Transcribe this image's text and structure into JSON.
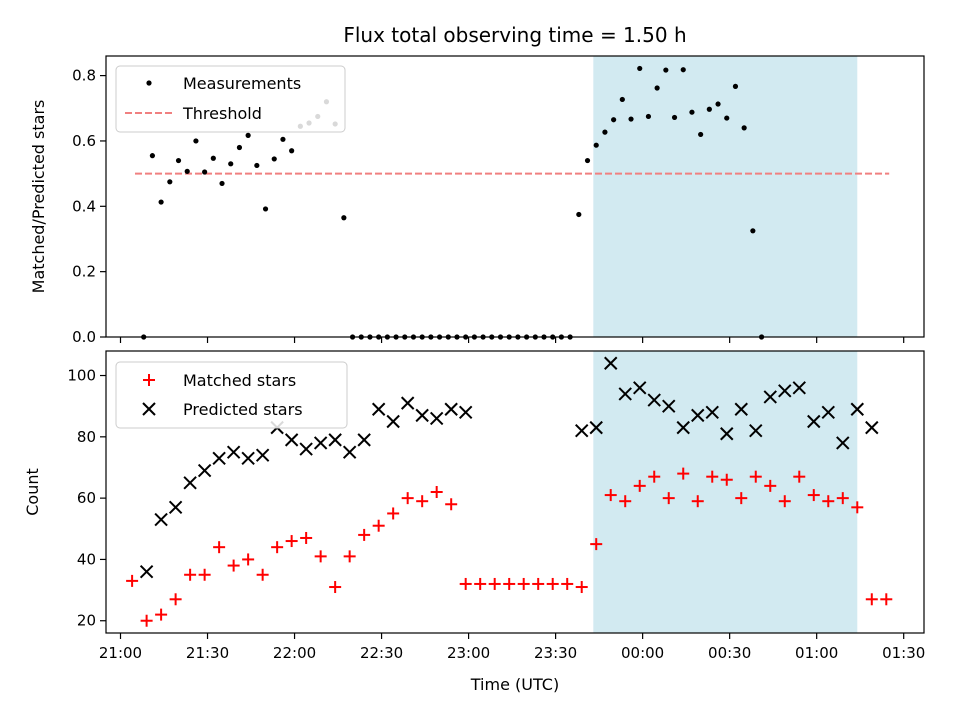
{
  "figure_title": "Flux total observing time = 1.50 h",
  "colors": {
    "measurement": "#000000",
    "threshold": "#f08080",
    "matched": "#ff0000",
    "predicted": "#000000",
    "shade": "#add8e6"
  },
  "chart_data": [
    {
      "type": "scatter",
      "title": "Flux total observing time = 1.50 h",
      "xlabel": "",
      "ylabel": "Matched/Predicted stars",
      "ylim": [
        0,
        0.86
      ],
      "yticks": [
        "0.0",
        "0.2",
        "0.4",
        "0.6",
        "0.8"
      ],
      "ytick_values": [
        0,
        0.2,
        0.4,
        0.6,
        0.8
      ],
      "xlim": [
        "20:55",
        "01:37"
      ],
      "shaded_span": [
        "23:43",
        "01:14"
      ],
      "legend": {
        "position": "upper-left",
        "entries": [
          "Measurements",
          "Threshold"
        ]
      },
      "threshold": {
        "name": "Threshold",
        "value": 0.5,
        "x_start": "21:05",
        "x_end": "01:25"
      },
      "series": [
        {
          "name": "Measurements",
          "x": [
            "21:05",
            "21:08",
            "21:11",
            "21:14",
            "21:17",
            "21:20",
            "21:23",
            "21:26",
            "21:29",
            "21:32",
            "21:35",
            "21:38",
            "21:41",
            "21:44",
            "21:47",
            "21:50",
            "21:53",
            "21:56",
            "21:59",
            "22:02",
            "22:05",
            "22:08",
            "22:11",
            "22:14",
            "22:17",
            "22:20",
            "22:23",
            "22:26",
            "22:29",
            "22:32",
            "22:35",
            "22:38",
            "22:41",
            "22:44",
            "22:47",
            "22:50",
            "22:53",
            "22:56",
            "22:59",
            "23:02",
            "23:05",
            "23:08",
            "23:11",
            "23:14",
            "23:17",
            "23:20",
            "23:23",
            "23:26",
            "23:29",
            "23:32",
            "23:35",
            "23:38",
            "23:41",
            "23:44",
            "23:47",
            "23:50",
            "23:53",
            "23:56",
            "23:59",
            "00:02",
            "00:05",
            "00:08",
            "00:11",
            "00:14",
            "00:17",
            "00:20",
            "00:23",
            "00:26",
            "00:29",
            "00:32",
            "00:35",
            "00:38",
            "00:41",
            "00:44",
            "00:47",
            "00:50",
            "00:53",
            "00:56",
            "00:59",
            "01:02",
            "01:05",
            "01:08",
            "01:11",
            "01:14",
            "01:17",
            "01:20",
            "01:23"
          ],
          "y": [
            null,
            0.0,
            0.555,
            0.413,
            0.475,
            0.54,
            0.507,
            0.6,
            0.505,
            0.547,
            0.47,
            0.53,
            0.58,
            0.617,
            0.525,
            0.392,
            0.545,
            0.605,
            0.57,
            0.645,
            0.655,
            0.675,
            0.72,
            0.652,
            0.365,
            0.0,
            0.0,
            0.0,
            0.0,
            0.0,
            0.0,
            0.0,
            0.0,
            0.0,
            0.0,
            0.0,
            0.0,
            0.0,
            0.0,
            0.0,
            0.0,
            0.0,
            0.0,
            0.0,
            0.0,
            0.0,
            0.0,
            0.0,
            0.0,
            0.0,
            0.0,
            0.375,
            0.54,
            0.587,
            0.627,
            0.665,
            0.727,
            0.667,
            0.822,
            0.675,
            0.762,
            0.817,
            0.672,
            0.818,
            0.688,
            0.62,
            0.697,
            0.713,
            0.67,
            0.767,
            0.64,
            0.325,
            0.0,
            null,
            null,
            null,
            null,
            null,
            null,
            null,
            null,
            null,
            null,
            null,
            null,
            null,
            null
          ]
        }
      ]
    },
    {
      "type": "scatter",
      "xlabel": "Time (UTC)",
      "ylabel": "Count",
      "ylim": [
        16,
        108
      ],
      "yticks": [
        "20",
        "40",
        "60",
        "80",
        "100"
      ],
      "ytick_values": [
        20,
        40,
        60,
        80,
        100
      ],
      "xticks": [
        "21:00",
        "21:30",
        "22:00",
        "22:30",
        "23:00",
        "23:30",
        "00:00",
        "00:30",
        "01:00",
        "01:30"
      ],
      "xlim": [
        "20:55",
        "01:37"
      ],
      "shaded_span": [
        "23:43",
        "01:14"
      ],
      "legend": {
        "position": "upper-left",
        "entries": [
          "Matched stars",
          "Predicted stars"
        ]
      },
      "series": [
        {
          "name": "Matched stars",
          "x": [
            "21:04",
            "21:09",
            "21:14",
            "21:19",
            "21:24",
            "21:29",
            "21:34",
            "21:39",
            "21:44",
            "21:49",
            "21:54",
            "21:59",
            "22:04",
            "22:09",
            "22:14",
            "22:19",
            "22:24",
            "22:29",
            "22:34",
            "22:39",
            "22:44",
            "22:49",
            "22:54",
            "22:59",
            "23:04",
            "23:09",
            "23:14",
            "23:19",
            "23:24",
            "23:29",
            "23:34",
            "23:39",
            "23:44",
            "23:49",
            "23:54",
            "23:59",
            "00:04",
            "00:09",
            "00:14",
            "00:19",
            "00:24",
            "00:29",
            "00:34",
            "00:39",
            "00:44",
            "00:49",
            "00:54",
            "00:59",
            "01:04",
            "01:09",
            "01:14",
            "01:19",
            "01:24"
          ],
          "y": [
            33,
            20,
            22,
            27,
            35,
            35,
            44,
            38,
            40,
            35,
            44,
            46,
            47,
            41,
            31,
            41,
            48,
            51,
            55,
            60,
            59,
            62,
            58,
            32,
            32,
            32,
            32,
            32,
            32,
            32,
            32,
            31,
            45,
            61,
            59,
            64,
            67,
            60,
            68,
            59,
            67,
            66,
            60,
            67,
            64,
            59,
            67,
            61,
            59,
            60,
            57,
            27,
            27
          ]
        },
        {
          "name": "Predicted stars",
          "x": [
            "21:09",
            "21:14",
            "21:19",
            "21:24",
            "21:29",
            "21:34",
            "21:39",
            "21:44",
            "21:49",
            "21:54",
            "21:59",
            "22:04",
            "22:09",
            "22:14",
            "22:19",
            "22:24",
            "22:29",
            "22:34",
            "22:39",
            "22:44",
            "22:49",
            "22:54",
            "22:59",
            "23:39",
            "23:44",
            "23:49",
            "23:54",
            "23:59",
            "00:04",
            "00:09",
            "00:14",
            "00:19",
            "00:24",
            "00:29",
            "00:34",
            "00:39",
            "00:44",
            "00:49",
            "00:54",
            "00:59",
            "01:04",
            "01:09",
            "01:14",
            "01:19"
          ],
          "y": [
            36,
            53,
            57,
            65,
            69,
            73,
            75,
            73,
            74,
            83,
            79,
            76,
            78,
            79,
            75,
            79,
            89,
            85,
            91,
            87,
            86,
            89,
            88,
            82,
            83,
            104,
            94,
            96,
            92,
            90,
            83,
            87,
            88,
            81,
            89,
            82,
            93,
            95,
            96,
            85,
            88,
            78,
            89,
            83
          ]
        }
      ]
    }
  ]
}
